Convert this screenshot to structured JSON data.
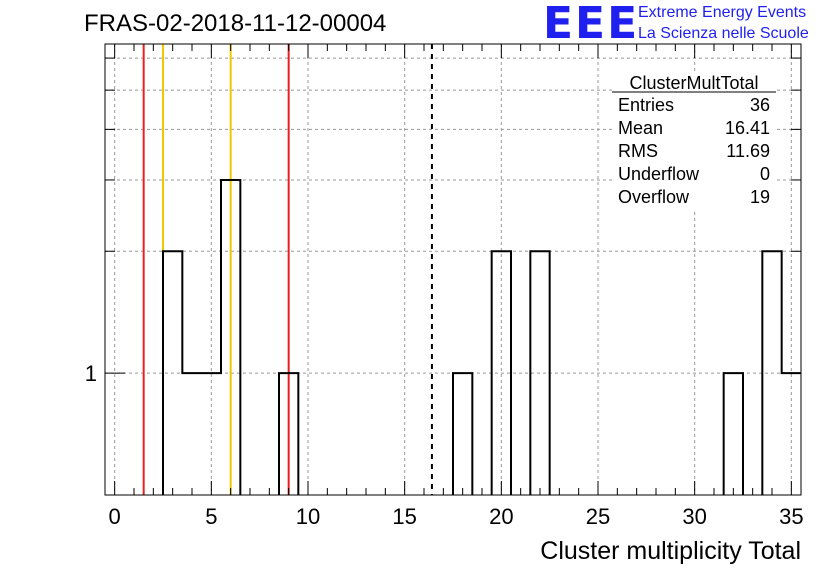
{
  "header": {
    "title": "FRAS-02-2018-11-12-00004",
    "logo_text": "EEE",
    "logo_line1": "Extreme Energy Events",
    "logo_line2": "La Scienza nelle Scuole"
  },
  "stats": {
    "name": "ClusterMultTotal",
    "rows": [
      {
        "label": "Entries",
        "value": "36"
      },
      {
        "label": "Mean",
        "value": "16.41"
      },
      {
        "label": "RMS",
        "value": "11.69"
      },
      {
        "label": "Underflow",
        "value": "0"
      },
      {
        "label": "Overflow",
        "value": "19"
      }
    ]
  },
  "chart_data": {
    "type": "bar",
    "title": "FRAS-02-2018-11-12-00004",
    "xlabel": "Cluster multiplicity Total",
    "ylabel": "",
    "xlim": [
      -0.5,
      35.5
    ],
    "log_y": true,
    "ylim": [
      0.5,
      6.5
    ],
    "grid": true,
    "ytick_labels": [
      {
        "value": 1,
        "label": "1"
      }
    ],
    "xtick_labels": [
      0,
      5,
      10,
      15,
      20,
      25,
      30,
      35
    ],
    "bin_width": 1,
    "bins": [
      {
        "x": 3,
        "value": 2
      },
      {
        "x": 4,
        "value": 1
      },
      {
        "x": 5,
        "value": 1
      },
      {
        "x": 6,
        "value": 3
      },
      {
        "x": 9,
        "value": 1
      },
      {
        "x": 18,
        "value": 1
      },
      {
        "x": 20,
        "value": 2
      },
      {
        "x": 22,
        "value": 2
      },
      {
        "x": 32,
        "value": 1
      },
      {
        "x": 34,
        "value": 2
      },
      {
        "x": 35,
        "value": 1
      }
    ],
    "vlines": [
      {
        "x": 1.5,
        "color": "#e8201e",
        "style": "solid"
      },
      {
        "x": 2.5,
        "color": "#f0c800",
        "style": "solid"
      },
      {
        "x": 6,
        "color": "#f0c800",
        "style": "solid"
      },
      {
        "x": 9,
        "color": "#e8201e",
        "style": "solid"
      },
      {
        "x": 16.41,
        "color": "#000000",
        "style": "dashed"
      }
    ]
  }
}
